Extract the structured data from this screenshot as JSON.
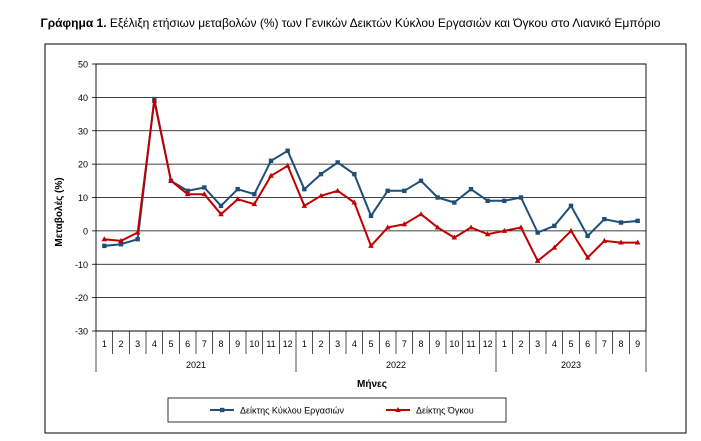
{
  "title": {
    "prefix": "Γράφημα 1.",
    "text": " Εξέλιξη ετήσιων μεταβολών (%) των Γενικών Δεικτών Κύκλου Εργασιών και Όγκου στο Λιανικό Εμπόριο"
  },
  "chart_data": {
    "type": "line",
    "ylabel": "Μεταβολές (%)",
    "xlabel": "Μήνες",
    "ylim": [
      -30,
      50
    ],
    "yticks": [
      -30,
      -20,
      -10,
      0,
      10,
      20,
      30,
      40,
      50
    ],
    "grid": true,
    "legend_position": "bottom",
    "categories": [
      "1",
      "2",
      "3",
      "4",
      "5",
      "6",
      "7",
      "8",
      "9",
      "10",
      "11",
      "12",
      "1",
      "2",
      "3",
      "4",
      "5",
      "6",
      "7",
      "8",
      "9",
      "10",
      "11",
      "12",
      "1",
      "2",
      "3",
      "4",
      "5",
      "6",
      "7",
      "8",
      "9"
    ],
    "years": [
      {
        "label": "2021",
        "months": 12
      },
      {
        "label": "2022",
        "months": 12
      },
      {
        "label": "2023",
        "months": 9
      }
    ],
    "series": [
      {
        "name": "Δείκτης Κύκλου Εργασιών",
        "color": "#1F4E79",
        "marker": "square",
        "values": [
          -4.5,
          -4.0,
          -2.5,
          39.5,
          15.0,
          12.0,
          13.0,
          7.5,
          12.5,
          11.0,
          21.0,
          24.0,
          12.5,
          17.0,
          20.5,
          17.0,
          4.5,
          12.0,
          12.0,
          15.0,
          10.0,
          8.5,
          12.5,
          9.0,
          9.0,
          10.0,
          -0.5,
          1.5,
          7.5,
          -1.5,
          3.5,
          2.5,
          3.0
        ]
      },
      {
        "name": "Δείκτης Όγκου",
        "color": "#C00000",
        "marker": "triangle",
        "values": [
          -2.5,
          -3.0,
          -0.5,
          39.0,
          15.0,
          11.0,
          11.0,
          5.0,
          9.5,
          8.0,
          16.5,
          19.5,
          7.5,
          10.5,
          12.0,
          8.5,
          -4.5,
          1.0,
          2.0,
          5.0,
          1.0,
          -2.0,
          1.0,
          -1.0,
          0.0,
          1.0,
          -9.0,
          -5.0,
          0.0,
          -8.0,
          -3.0,
          -3.5,
          -3.5
        ]
      }
    ]
  }
}
